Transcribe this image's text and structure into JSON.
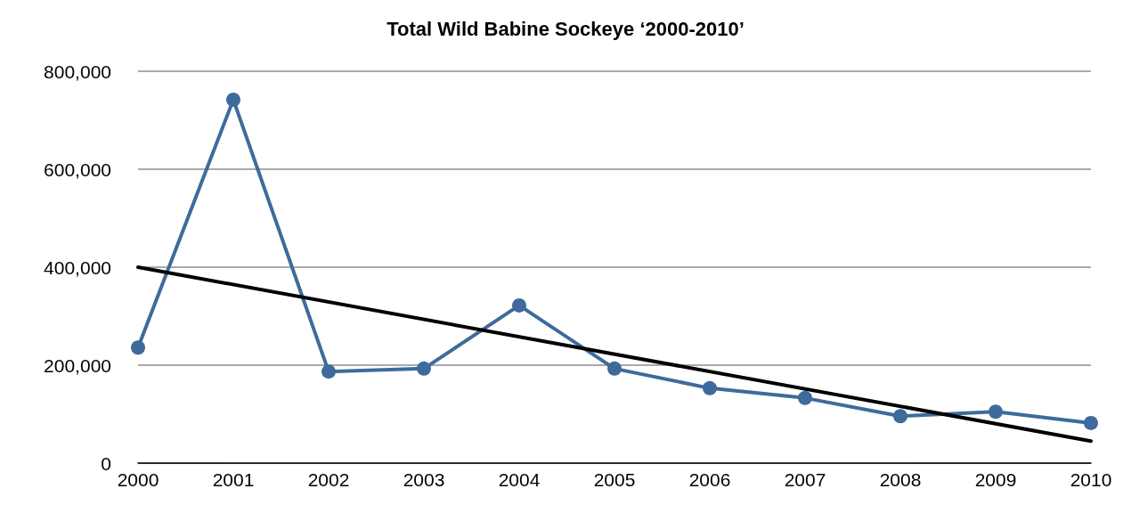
{
  "chart_data": {
    "type": "line",
    "title": "Total Wild Babine Sockeye ‘2000-2010’",
    "categories": [
      "2000",
      "2001",
      "2002",
      "2003",
      "2004",
      "2005",
      "2006",
      "2007",
      "2008",
      "2009",
      "2010"
    ],
    "series": [
      {
        "color": "#3e6b9c",
        "values": [
          236000,
          742000,
          187000,
          193000,
          322000,
          193000,
          153000,
          133000,
          96000,
          105000,
          82000
        ]
      },
      {
        "type": "line",
        "color": "#000000",
        "values": [
          400000,
          null,
          null,
          null,
          null,
          null,
          null,
          null,
          null,
          null,
          45000
        ],
        "marker": "none"
      }
    ],
    "ylim": [
      0,
      800000
    ],
    "yticks": [
      0,
      {
        "value": 200000,
        "label": "200,000"
      },
      {
        "value": 400000,
        "label": "400,000"
      },
      {
        "value": 600000,
        "label": "600,000"
      },
      {
        "value": 800000,
        "label": "800,000"
      }
    ],
    "grid": "y",
    "marker": "circle",
    "line_style": "solid"
  }
}
